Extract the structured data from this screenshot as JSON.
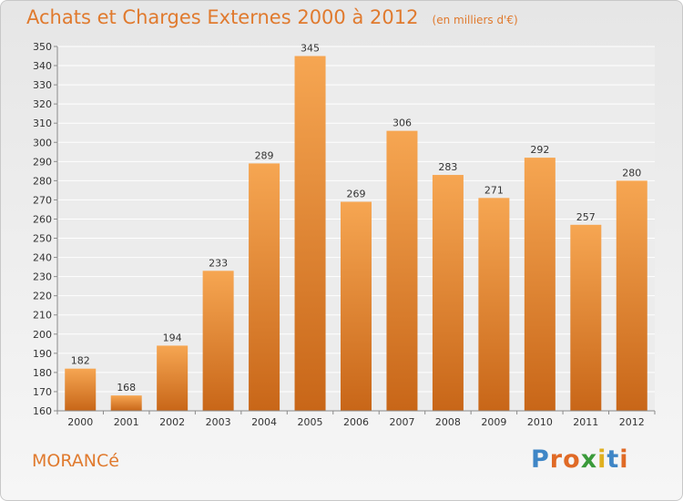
{
  "title": "Achats et Charges Externes 2000 à 2012",
  "unit_note": "(en milliers d'€)",
  "commune": "MORANCé",
  "logo": [
    "P",
    "r",
    "o",
    "x",
    "i",
    "t",
    "i"
  ],
  "colors": {
    "bar_top": "#f6a652",
    "bar_bottom": "#c86618",
    "accent": "#e07a2e",
    "logo": [
      "#3f86c6",
      "#e06a26",
      "#e06a26",
      "#3a9a3a",
      "#e0b020",
      "#3f86c6",
      "#e06a26"
    ]
  },
  "chart_data": {
    "type": "bar",
    "title": "Achats et Charges Externes 2000 à 2012",
    "categories": [
      "2000",
      "2001",
      "2002",
      "2003",
      "2004",
      "2005",
      "2006",
      "2007",
      "2008",
      "2009",
      "2010",
      "2011",
      "2012"
    ],
    "values": [
      182,
      168,
      194,
      233,
      289,
      345,
      269,
      306,
      283,
      271,
      292,
      257,
      280
    ],
    "ylim": [
      160,
      350
    ],
    "yticks": [
      160,
      170,
      180,
      190,
      200,
      210,
      220,
      230,
      240,
      250,
      260,
      270,
      280,
      290,
      300,
      310,
      320,
      330,
      340,
      350
    ],
    "grid": true,
    "legend": "none"
  }
}
